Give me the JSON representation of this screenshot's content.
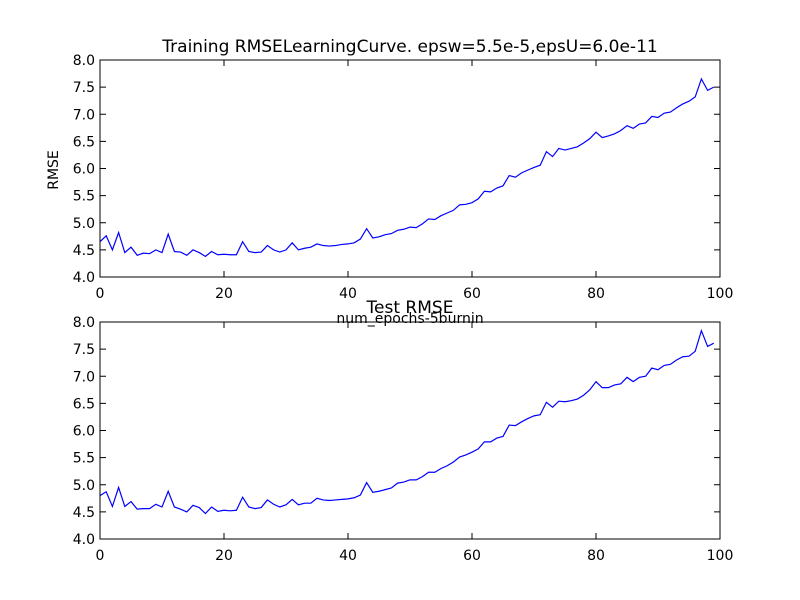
{
  "chart_data": [
    {
      "type": "line",
      "title": "Training RMSELearningCurve. epsw=5.5e-5,epsU=6.0e-11",
      "xlabel": "num_epochs-5burnin",
      "ylabel": "RMSE",
      "xlim": [
        0,
        100
      ],
      "ylim": [
        4.0,
        8.0
      ],
      "xticks": [
        "0",
        "20",
        "40",
        "60",
        "80",
        "100"
      ],
      "yticks": [
        "4.0",
        "4.5",
        "5.0",
        "5.5",
        "6.0",
        "6.5",
        "7.0",
        "7.5",
        "8.0"
      ],
      "grid": false,
      "color": "#0000ff",
      "series": [
        {
          "x": [
            0,
            1,
            2,
            3,
            4,
            5,
            6,
            7,
            8,
            9,
            10,
            11,
            12,
            13,
            14,
            15,
            16,
            17,
            18,
            19,
            20,
            21,
            22,
            23,
            24,
            25,
            26,
            27,
            28,
            29,
            30,
            31,
            32,
            33,
            34,
            35,
            36,
            37,
            38,
            39,
            40,
            41,
            42,
            43,
            44,
            45,
            46,
            47,
            48,
            49,
            50,
            51,
            52,
            53,
            54,
            55,
            56,
            57,
            58,
            59,
            60,
            61,
            62,
            63,
            64,
            65,
            66,
            67,
            68,
            69,
            70,
            71,
            72,
            73,
            74,
            75,
            76,
            77,
            78,
            79,
            80,
            81,
            82,
            83,
            84,
            85,
            86,
            87,
            88,
            89,
            90,
            91,
            92,
            93,
            94,
            95,
            96,
            97,
            98,
            99
          ],
          "values": [
            4.65,
            4.76,
            4.5,
            4.82,
            4.45,
            4.55,
            4.4,
            4.44,
            4.43,
            4.5,
            4.45,
            4.79,
            4.47,
            4.46,
            4.4,
            4.5,
            4.45,
            4.38,
            4.47,
            4.41,
            4.42,
            4.41,
            4.41,
            4.65,
            4.47,
            4.45,
            4.46,
            4.58,
            4.5,
            4.46,
            4.5,
            4.63,
            4.5,
            4.53,
            4.55,
            4.61,
            4.58,
            4.57,
            4.58,
            4.6,
            4.61,
            4.63,
            4.7,
            4.89,
            4.72,
            4.74,
            4.78,
            4.8,
            4.86,
            4.88,
            4.92,
            4.91,
            4.98,
            5.07,
            5.06,
            5.13,
            5.18,
            5.23,
            5.33,
            5.34,
            5.37,
            5.44,
            5.58,
            5.57,
            5.64,
            5.68,
            5.87,
            5.84,
            5.92,
            5.97,
            6.02,
            6.06,
            6.31,
            6.22,
            6.37,
            6.34,
            6.37,
            6.4,
            6.47,
            6.55,
            6.67,
            6.57,
            6.6,
            6.64,
            6.7,
            6.79,
            6.74,
            6.82,
            6.84,
            6.96,
            6.94,
            7.02,
            7.04,
            7.12,
            7.19,
            7.24,
            7.32,
            7.65,
            7.44,
            7.5
          ]
        }
      ]
    },
    {
      "type": "line",
      "title": "Test RMSE",
      "xlim": [
        0,
        100
      ],
      "ylim": [
        4.0,
        8.0
      ],
      "xticks": [
        "0",
        "20",
        "40",
        "60",
        "80",
        "100"
      ],
      "yticks": [
        "4.0",
        "4.5",
        "5.0",
        "5.5",
        "6.0",
        "6.5",
        "7.0",
        "7.5",
        "8.0"
      ],
      "grid": false,
      "color": "#0000ff",
      "series": [
        {
          "x": [
            0,
            1,
            2,
            3,
            4,
            5,
            6,
            7,
            8,
            9,
            10,
            11,
            12,
            13,
            14,
            15,
            16,
            17,
            18,
            19,
            20,
            21,
            22,
            23,
            24,
            25,
            26,
            27,
            28,
            29,
            30,
            31,
            32,
            33,
            34,
            35,
            36,
            37,
            38,
            39,
            40,
            41,
            42,
            43,
            44,
            45,
            46,
            47,
            48,
            49,
            50,
            51,
            52,
            53,
            54,
            55,
            56,
            57,
            58,
            59,
            60,
            61,
            62,
            63,
            64,
            65,
            66,
            67,
            68,
            69,
            70,
            71,
            72,
            73,
            74,
            75,
            76,
            77,
            78,
            79,
            80,
            81,
            82,
            83,
            84,
            85,
            86,
            87,
            88,
            89,
            90,
            91,
            92,
            93,
            94,
            95,
            96,
            97,
            98,
            99
          ],
          "values": [
            4.8,
            4.87,
            4.6,
            4.95,
            4.6,
            4.69,
            4.55,
            4.56,
            4.56,
            4.64,
            4.59,
            4.88,
            4.59,
            4.55,
            4.5,
            4.62,
            4.58,
            4.47,
            4.59,
            4.51,
            4.53,
            4.52,
            4.53,
            4.77,
            4.59,
            4.56,
            4.58,
            4.72,
            4.64,
            4.59,
            4.63,
            4.73,
            4.63,
            4.66,
            4.66,
            4.75,
            4.72,
            4.71,
            4.72,
            4.73,
            4.74,
            4.76,
            4.81,
            5.04,
            4.86,
            4.88,
            4.91,
            4.94,
            5.03,
            5.05,
            5.09,
            5.09,
            5.15,
            5.23,
            5.23,
            5.3,
            5.35,
            5.42,
            5.51,
            5.55,
            5.6,
            5.66,
            5.79,
            5.79,
            5.86,
            5.89,
            6.1,
            6.09,
            6.16,
            6.22,
            6.27,
            6.29,
            6.52,
            6.43,
            6.54,
            6.53,
            6.55,
            6.58,
            6.65,
            6.75,
            6.9,
            6.79,
            6.79,
            6.84,
            6.86,
            6.98,
            6.9,
            6.98,
            7.0,
            7.15,
            7.12,
            7.2,
            7.22,
            7.3,
            7.36,
            7.37,
            7.46,
            7.84,
            7.55,
            7.61
          ]
        }
      ]
    }
  ]
}
